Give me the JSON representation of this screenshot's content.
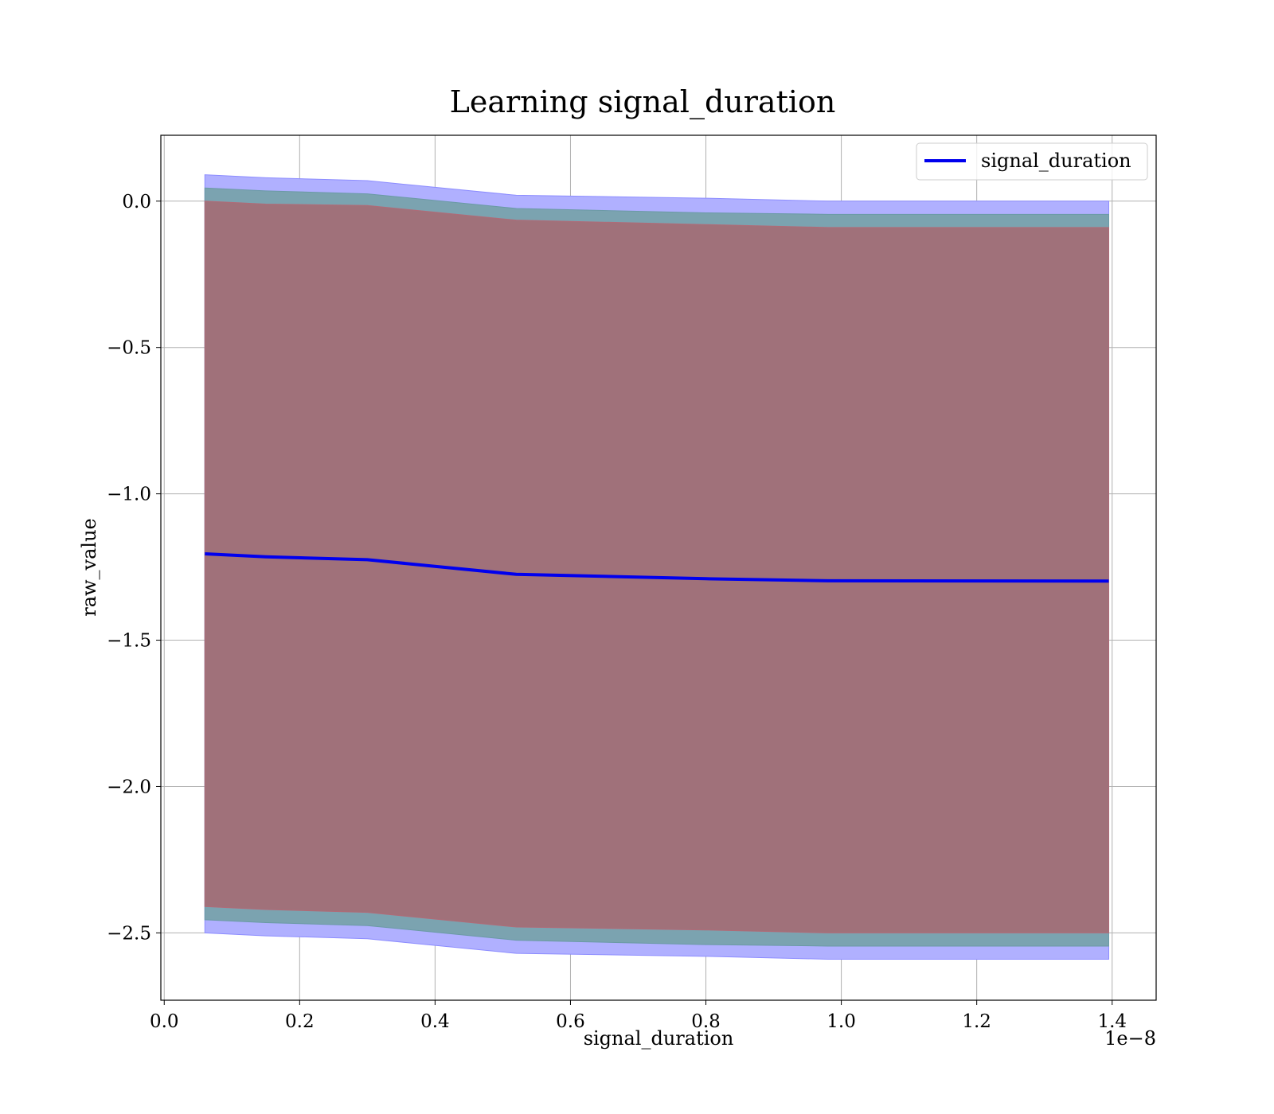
{
  "chart_data": {
    "type": "line",
    "title": "Learning signal_duration",
    "xlabel": "signal_duration",
    "ylabel": "raw_value",
    "x_offset_text": "1e−8",
    "xlim": [
      -0.005,
      1.465
    ],
    "ylim": [
      -2.73,
      0.225
    ],
    "x_ticks": [
      0.0,
      0.2,
      0.4,
      0.6,
      0.8,
      1.0,
      1.2,
      1.4
    ],
    "x_tick_labels": [
      "0.0",
      "0.2",
      "0.4",
      "0.6",
      "0.8",
      "1.0",
      "1.2",
      "1.4"
    ],
    "y_ticks": [
      0.0,
      -0.5,
      -1.0,
      -1.5,
      -2.0,
      -2.5
    ],
    "y_tick_labels": [
      "0.0",
      "−0.5",
      "−1.0",
      "−1.5",
      "−2.0",
      "−2.5"
    ],
    "grid": true,
    "legend": {
      "placement": "top-right",
      "entries": [
        "signal_duration"
      ]
    },
    "colors": {
      "line": "#0000ee",
      "outer_band": "#b0b0ff",
      "middle_band": "#7ba3b0",
      "inner_band": "#a0717a"
    },
    "x": [
      0.06,
      0.15,
      0.3,
      0.52,
      0.8,
      0.98,
      1.395
    ],
    "series": [
      {
        "name": "signal_duration",
        "values": [
          -1.205,
          -1.215,
          -1.225,
          -1.275,
          -1.29,
          -1.297,
          -1.298
        ]
      }
    ],
    "bands": [
      {
        "upper": [
          0.09,
          0.08,
          0.07,
          0.02,
          0.01,
          0.0,
          0.0
        ],
        "lower": [
          -2.5,
          -2.51,
          -2.52,
          -2.57,
          -2.58,
          -2.59,
          -2.59
        ]
      },
      {
        "upper": [
          0.045,
          0.035,
          0.025,
          -0.025,
          -0.04,
          -0.045,
          -0.045
        ],
        "lower": [
          -2.455,
          -2.465,
          -2.475,
          -2.525,
          -2.54,
          -2.545,
          -2.545
        ]
      },
      {
        "upper": [
          0.0,
          -0.01,
          -0.015,
          -0.065,
          -0.08,
          -0.09,
          -0.09
        ],
        "lower": [
          -2.41,
          -2.42,
          -2.43,
          -2.48,
          -2.49,
          -2.5,
          -2.5
        ]
      }
    ]
  }
}
